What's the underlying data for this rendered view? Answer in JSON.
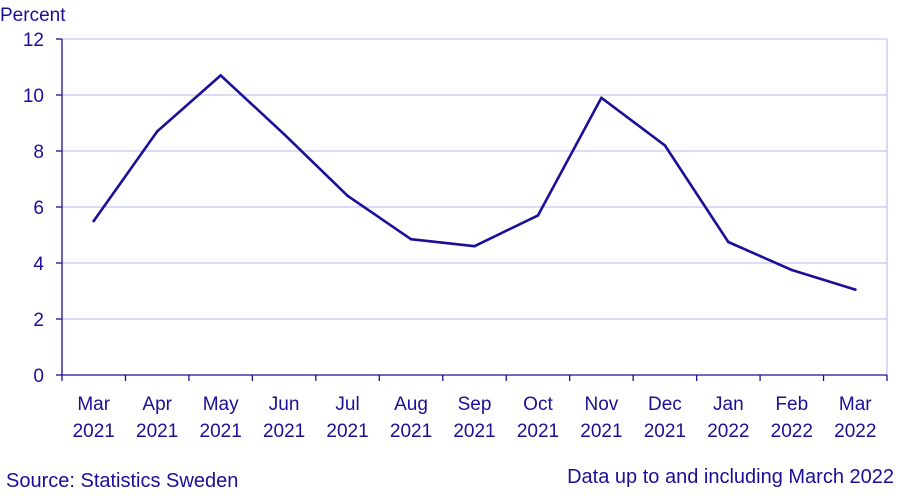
{
  "chart_data": {
    "type": "line",
    "ylabel": "Percent",
    "ylim": [
      0,
      12
    ],
    "yticks": [
      "0",
      "2",
      "4",
      "6",
      "8",
      "10",
      "12"
    ],
    "grid": true,
    "categories": [
      [
        "Mar",
        "2021"
      ],
      [
        "Apr",
        "2021"
      ],
      [
        "May",
        "2021"
      ],
      [
        "Jun",
        "2021"
      ],
      [
        "Jul",
        "2021"
      ],
      [
        "Aug",
        "2021"
      ],
      [
        "Sep",
        "2021"
      ],
      [
        "Oct",
        "2021"
      ],
      [
        "Nov",
        "2021"
      ],
      [
        "Dec",
        "2021"
      ],
      [
        "Jan",
        "2022"
      ],
      [
        "Feb",
        "2022"
      ],
      [
        "Mar",
        "2022"
      ]
    ],
    "series": [
      {
        "values": [
          5.5,
          8.7,
          10.7,
          8.6,
          6.4,
          4.85,
          4.6,
          5.7,
          9.9,
          8.2,
          4.75,
          3.75,
          3.05
        ]
      }
    ],
    "colors": {
      "line": "#1a0f99",
      "grid": "#c8c4ee",
      "axis": "#1a0f99",
      "text": "#1a0f99"
    }
  },
  "footer": {
    "source": "Source: Statistics Sweden",
    "note": "Data up to and including March 2022"
  }
}
